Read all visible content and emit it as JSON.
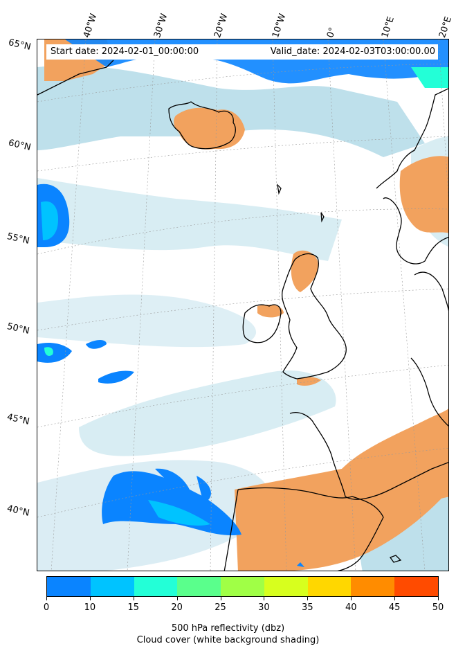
{
  "map": {
    "start_date": "Start date: 2024-02-01_00:00:00",
    "valid_date": "Valid_date: 2024-02-03T03:00:00.00",
    "lat_labels": [
      "65°N",
      "60°N",
      "55°N",
      "50°N",
      "45°N",
      "40°N"
    ],
    "lon_labels": [
      "40°W",
      "30°W",
      "20°W",
      "10°W",
      "0°",
      "10°E",
      "20°E"
    ]
  },
  "colorbar": {
    "ticks": [
      "0",
      "10",
      "15",
      "20",
      "25",
      "30",
      "35",
      "40",
      "45",
      "50"
    ],
    "colors": [
      "#0a84ff",
      "#00c3ff",
      "#23ffd7",
      "#5aff8c",
      "#a0ff46",
      "#d7ff1e",
      "#ffd700",
      "#ff8c00",
      "#ff4b00"
    ],
    "label": "500 hPa reflectivity (dbz)",
    "sublabel": "Cloud cover (white background shading)"
  },
  "colors": {
    "cloud": "#a9d6e5",
    "land_warm": "#f2a25e",
    "refl_blue": "#0a84ff",
    "refl_cyan": "#00c3ff",
    "refl_teal": "#23ffd7",
    "coast": "#000000"
  }
}
